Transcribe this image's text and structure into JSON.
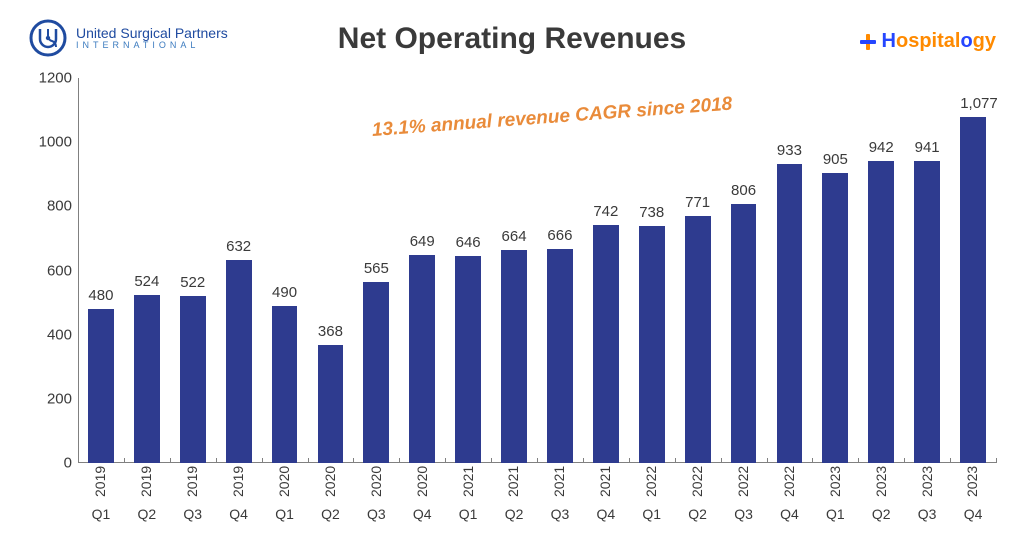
{
  "header": {
    "title": "Net Operating Revenues",
    "left_logo": {
      "line1": "United Surgical Partners",
      "line2": "INTERNATIONAL",
      "color": "#1f4ba0"
    },
    "right_logo": {
      "prefix": "H",
      "mid": "ospital",
      "suffix1": "o",
      "suffix2": "gy",
      "cross_orange": "#ff8a00",
      "cross_blue": "#2546ff",
      "text_blue": "#2546ff",
      "text_orange": "#ff8a00"
    }
  },
  "annotation": {
    "text": "13.1% annual revenue CAGR since 2018",
    "color": "#e98b3a",
    "fontsize": 19,
    "rotation_deg": -4.2
  },
  "chart": {
    "type": "bar",
    "title_fontsize": 30,
    "title_color": "#3a3a3a",
    "background_color": "#ffffff",
    "axis_color": "#808080",
    "label_color": "#3a3a3a",
    "label_fontsize": 15,
    "xlabel_fontsize": 14,
    "ylim": [
      0,
      1200
    ],
    "ytick_step": 200,
    "yticks": [
      0,
      200,
      400,
      600,
      800,
      1000,
      1200
    ],
    "bar_color": "#2e3b8f",
    "bar_width_ratio": 0.56,
    "data": [
      {
        "year": "2019",
        "quarter": "Q1",
        "value": 480
      },
      {
        "year": "2019",
        "quarter": "Q2",
        "value": 524
      },
      {
        "year": "2019",
        "quarter": "Q3",
        "value": 522
      },
      {
        "year": "2019",
        "quarter": "Q4",
        "value": 632
      },
      {
        "year": "2020",
        "quarter": "Q1",
        "value": 490
      },
      {
        "year": "2020",
        "quarter": "Q2",
        "value": 368
      },
      {
        "year": "2020",
        "quarter": "Q3",
        "value": 565
      },
      {
        "year": "2020",
        "quarter": "Q4",
        "value": 649
      },
      {
        "year": "2021",
        "quarter": "Q1",
        "value": 646
      },
      {
        "year": "2021",
        "quarter": "Q2",
        "value": 664
      },
      {
        "year": "2021",
        "quarter": "Q3",
        "value": 666
      },
      {
        "year": "2021",
        "quarter": "Q4",
        "value": 742
      },
      {
        "year": "2022",
        "quarter": "Q1",
        "value": 738
      },
      {
        "year": "2022",
        "quarter": "Q2",
        "value": 771
      },
      {
        "year": "2022",
        "quarter": "Q3",
        "value": 806
      },
      {
        "year": "2022",
        "quarter": "Q4",
        "value": 933
      },
      {
        "year": "2023",
        "quarter": "Q1",
        "value": 905
      },
      {
        "year": "2023",
        "quarter": "Q2",
        "value": 942
      },
      {
        "year": "2023",
        "quarter": "Q3",
        "value": 941
      },
      {
        "year": "2023",
        "quarter": "Q4",
        "value": 1077,
        "display_value": "1,077"
      }
    ]
  }
}
